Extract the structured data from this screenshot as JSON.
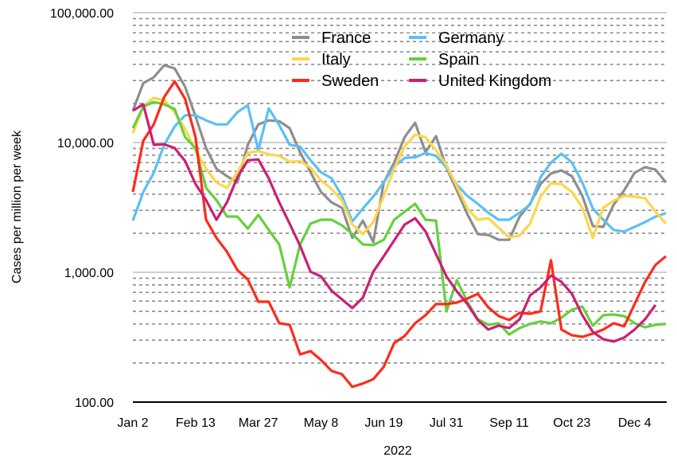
{
  "chart_data": {
    "type": "line",
    "title": "",
    "xlabel": "2022",
    "ylabel": "Cases per million per week",
    "yscale": "log",
    "ylim": [
      100,
      100000
    ],
    "y_ticks": [
      100,
      1000,
      10000,
      100000
    ],
    "y_tick_labels": [
      "100.00",
      "1,000.00",
      "10,000.00",
      "100,000.00"
    ],
    "x_tick_labels": [
      "Jan 2",
      "Feb 13",
      "Mar 27",
      "May 8",
      "Jun 19",
      "Jul 31",
      "Sep 11",
      "Oct 23",
      "Dec 4"
    ],
    "x_tick_week_index": [
      0,
      6,
      12,
      18,
      24,
      30,
      36,
      42,
      48
    ],
    "x_unit": "week index (weekly from Jan 2)",
    "grid": "major solid + minor dashed (log)",
    "legend_placement": "top-center",
    "series": [
      {
        "name": "France",
        "color": "#8e8e8e",
        "values": [
          17600,
          28700,
          31800,
          39400,
          37200,
          26900,
          15900,
          9060,
          6270,
          5500,
          4930,
          9600,
          13800,
          14800,
          14600,
          12900,
          8400,
          5900,
          4160,
          3460,
          3140,
          1840,
          2500,
          1710,
          4930,
          7000,
          11000,
          14200,
          8400,
          11200,
          6400,
          4280,
          2800,
          1970,
          1940,
          1780,
          1780,
          2690,
          3370,
          4790,
          5770,
          6100,
          5500,
          3880,
          2270,
          2240,
          3320,
          4280,
          5850,
          6460,
          6180,
          4930
        ]
      },
      {
        "name": "Germany",
        "color": "#5ac0f5",
        "values": [
          2500,
          4160,
          5850,
          9600,
          13300,
          16200,
          16200,
          14800,
          13800,
          13800,
          17100,
          19400,
          8700,
          18300,
          13600,
          9600,
          9300,
          7300,
          5900,
          5300,
          3880,
          2470,
          3100,
          3830,
          4930,
          6550,
          7600,
          7700,
          8300,
          7900,
          6400,
          4720,
          3880,
          3370,
          2880,
          2540,
          2540,
          2880,
          3320,
          5400,
          7000,
          8200,
          7000,
          4930,
          3100,
          2540,
          2120,
          2060,
          2240,
          2440,
          2690,
          2860
        ]
      },
      {
        "name": "Italy",
        "color": "#fdd64a",
        "values": [
          11800,
          18900,
          22100,
          21200,
          17100,
          12700,
          8700,
          6270,
          4930,
          4470,
          5900,
          8300,
          8600,
          8100,
          7900,
          7100,
          7200,
          6400,
          5100,
          4400,
          3570,
          2330,
          1970,
          2440,
          3880,
          6270,
          9300,
          11500,
          11000,
          8700,
          6700,
          4600,
          3100,
          2540,
          2610,
          2200,
          1860,
          1920,
          2370,
          3830,
          4860,
          4790,
          4160,
          3140,
          1840,
          3140,
          3570,
          3880,
          3830,
          3720,
          2930,
          2370
        ]
      },
      {
        "name": "Spain",
        "color": "#63d13d",
        "values": [
          12900,
          18900,
          20500,
          19700,
          18100,
          11000,
          9060,
          4470,
          3600,
          2690,
          2690,
          2170,
          2770,
          2120,
          1640,
          765,
          1640,
          2370,
          2540,
          2540,
          2300,
          1970,
          1640,
          1620,
          1780,
          2540,
          2930,
          3370,
          2540,
          2500,
          500,
          870,
          593,
          435,
          394,
          405,
          332,
          372,
          400,
          418,
          405,
          447,
          515,
          545,
          388,
          467,
          473,
          460,
          405,
          377,
          394,
          400
        ]
      },
      {
        "name": "Sweden",
        "color": "#ff2a1a",
        "values": [
          4160,
          10300,
          13800,
          22400,
          29600,
          21700,
          11000,
          2540,
          1840,
          1440,
          1040,
          880,
          593,
          593,
          405,
          394,
          233,
          247,
          211,
          174,
          164,
          131,
          139,
          150,
          187,
          285,
          323,
          405,
          467,
          569,
          569,
          585,
          627,
          683,
          537,
          460,
          429,
          487,
          480,
          500,
          1240,
          362,
          327,
          318,
          337,
          362,
          405,
          383,
          569,
          844,
          1140,
          1330
        ]
      },
      {
        "name": "United Kingdom",
        "color": "#cc1f73",
        "values": [
          17600,
          19700,
          9600,
          9700,
          9060,
          7200,
          4790,
          3600,
          2540,
          3460,
          5400,
          7300,
          7400,
          5300,
          3460,
          2370,
          1600,
          1010,
          931,
          723,
          619,
          530,
          637,
          1010,
          1330,
          1760,
          2330,
          2610,
          2060,
          1380,
          931,
          712,
          569,
          429,
          362,
          388,
          372,
          435,
          664,
          765,
          945,
          844,
          683,
          467,
          347,
          305,
          293,
          314,
          362,
          435,
          560
        ]
      }
    ]
  }
}
